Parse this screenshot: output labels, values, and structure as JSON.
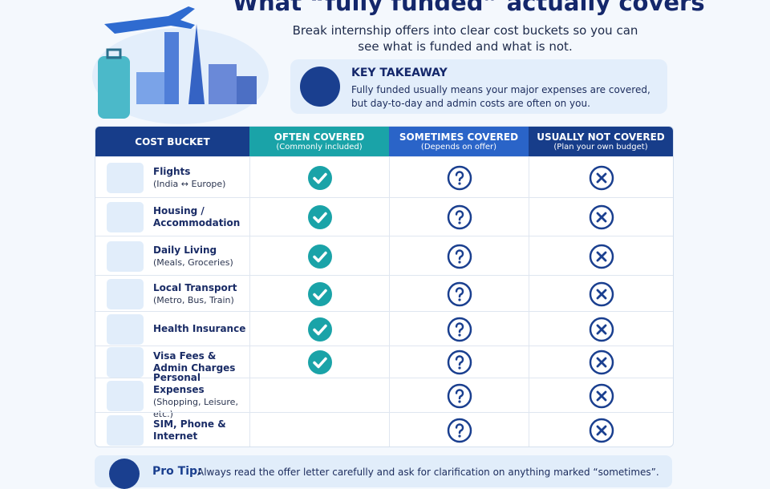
{
  "header": {
    "title": "What “fully funded” actually covers",
    "subtitle": "Break internship offers into clear cost buckets so you can see what is funded and what is not."
  },
  "takeaway": {
    "title": "KEY TAKEAWAY",
    "text": "Fully funded usually means your major expenses are covered, but day-to-day and admin costs are often on you."
  },
  "table": {
    "columns": [
      {
        "title": "COST BUCKET"
      },
      {
        "title": "OFTEN COVERED",
        "note": "(Commonly included)"
      },
      {
        "title": "SOMETIMES COVERED",
        "note": "(Depends on offer)"
      },
      {
        "title": "USUALLY NOT COVERED",
        "note": "(Plan your own budget)"
      }
    ],
    "rows": [
      {
        "name": "Flights",
        "detail": "(India ↔ Europe)"
      },
      {
        "name": "Housing / Accommodation"
      },
      {
        "name": "Daily Living",
        "detail": "(Meals, Groceries)"
      },
      {
        "name": "Local Transport",
        "detail": "(Metro, Bus, Train)"
      },
      {
        "name": "Health Insurance"
      },
      {
        "name": "Visa Fees & Admin Charges"
      },
      {
        "name": "Personal Expenses",
        "detail": "(Shopping, Leisure, etc.)"
      },
      {
        "name": "SIM, Phone & Internet"
      }
    ]
  },
  "tip": {
    "label": "Pro Tip:",
    "text": "Always read the offer letter carefully and ask for clarification on anything marked “sometimes”."
  }
}
